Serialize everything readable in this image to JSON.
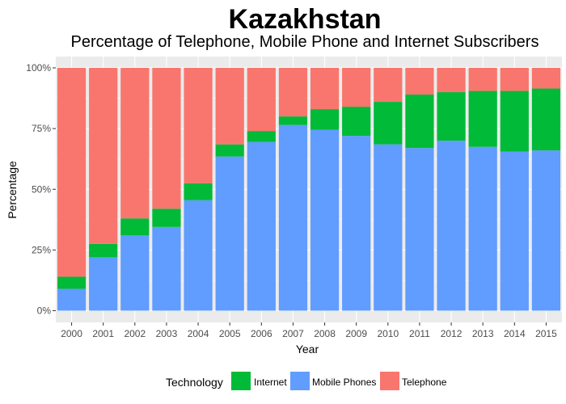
{
  "chart_data": {
    "type": "bar",
    "stacked": true,
    "title": "Kazakhstan",
    "subtitle": "Percentage of Telephone, Mobile Phone and Internet Subscribers",
    "xlabel": "Year",
    "ylabel": "Percentage",
    "ylim": [
      0,
      100
    ],
    "yticks": [
      "0%",
      "25%",
      "50%",
      "75%",
      "100%"
    ],
    "grid": true,
    "categories": [
      "2000",
      "2001",
      "2002",
      "2003",
      "2004",
      "2005",
      "2006",
      "2007",
      "2008",
      "2009",
      "2010",
      "2011",
      "2012",
      "2013",
      "2014",
      "2015"
    ],
    "series": [
      {
        "name": "Mobile Phones",
        "color": "#619CFF",
        "values": [
          9,
          22,
          31,
          34.5,
          45.5,
          63.5,
          69.5,
          76.5,
          74.5,
          72,
          68.5,
          67,
          70,
          67.5,
          65.5,
          66
        ]
      },
      {
        "name": "Internet",
        "color": "#00BA38",
        "values": [
          5,
          5.5,
          7,
          7.5,
          7,
          5,
          4.5,
          3.5,
          8.5,
          12,
          17.5,
          22,
          20,
          23,
          25,
          25.5
        ]
      },
      {
        "name": "Telephone",
        "color": "#F8766D",
        "values": [
          86,
          72.5,
          62,
          58,
          47.5,
          31.5,
          26,
          20,
          17,
          16,
          14,
          11,
          10,
          9.5,
          9.5,
          8.5
        ]
      }
    ],
    "legend": {
      "title": "Technology",
      "position": "bottom",
      "items": [
        "Internet",
        "Mobile Phones",
        "Telephone"
      ]
    },
    "colors": {
      "panel": "#EBEBEB",
      "grid": "#FFFFFF"
    }
  }
}
